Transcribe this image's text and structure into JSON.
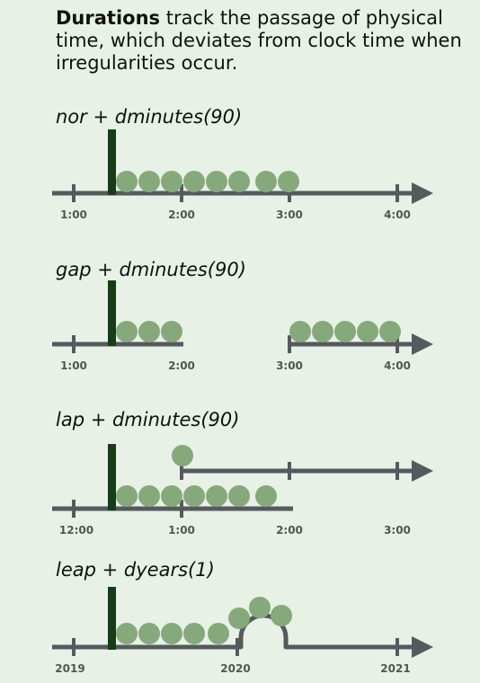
{
  "intro": {
    "bold": "Durations",
    "rest": " track the passage of physical time, which deviates from clock time when irregularities occur."
  },
  "panels": [
    {
      "title": "nor + dminutes(90)",
      "ticks": [
        "1:00",
        "2:00",
        "3:00",
        "4:00"
      ]
    },
    {
      "title": "gap + dminutes(90)",
      "ticks": [
        "1:00",
        "2:00",
        "3:00",
        "4:00"
      ]
    },
    {
      "title": "lap + dminutes(90)",
      "ticks": [
        "12:00",
        "1:00",
        "2:00",
        "3:00"
      ]
    },
    {
      "title": "leap + dyears(1)",
      "ticks": [
        "2019",
        "2020",
        "2021"
      ]
    }
  ],
  "colors": {
    "background": "#e8f1e6",
    "axis": "#555a5e",
    "dot": "#86a97c",
    "start_marker": "#173d17"
  }
}
